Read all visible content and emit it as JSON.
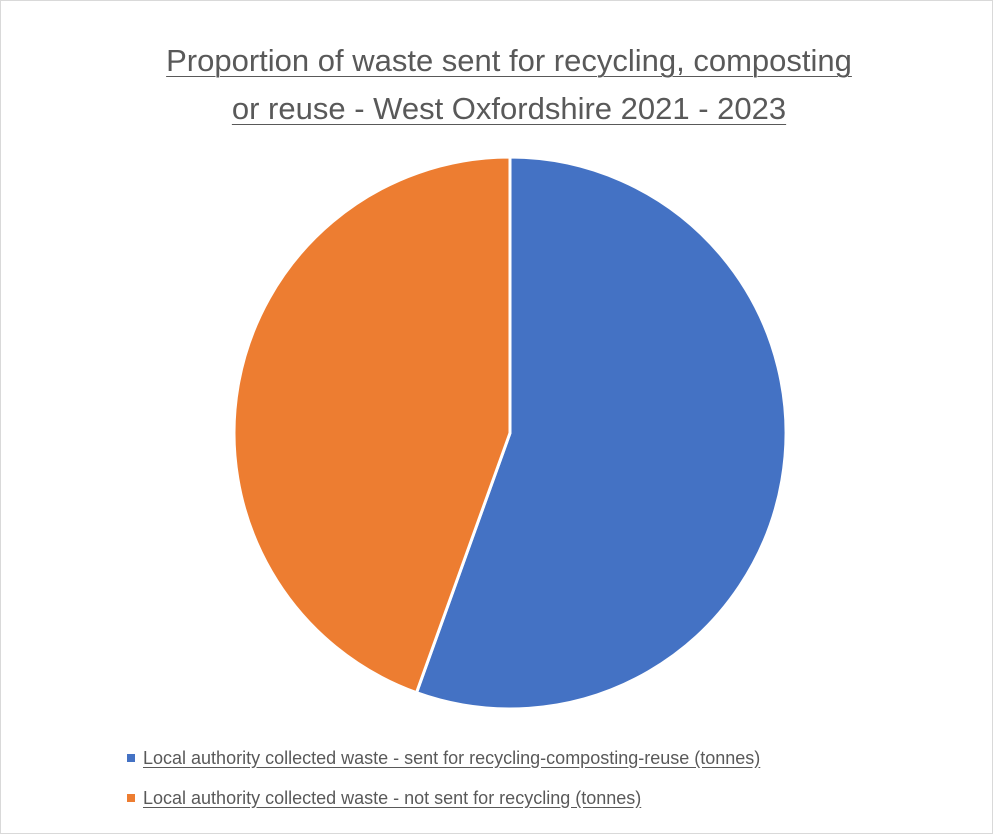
{
  "chart_data": {
    "type": "pie",
    "title_lines": [
      "Proportion of waste sent for recycling, composting",
      "or reuse - West Oxfordshire 2021 - 2023"
    ],
    "slices": [
      {
        "name": "Local authority collected waste - sent for recycling-composting-reuse (tonnes)",
        "value": 55.5,
        "color": "#4472C4"
      },
      {
        "name": "Local authority collected waste - not sent for recycling (tonnes)",
        "value": 44.5,
        "color": "#ED7D31"
      }
    ],
    "start_angle_deg": 0,
    "direction": "clockwise",
    "legend_position": "bottom-left"
  }
}
